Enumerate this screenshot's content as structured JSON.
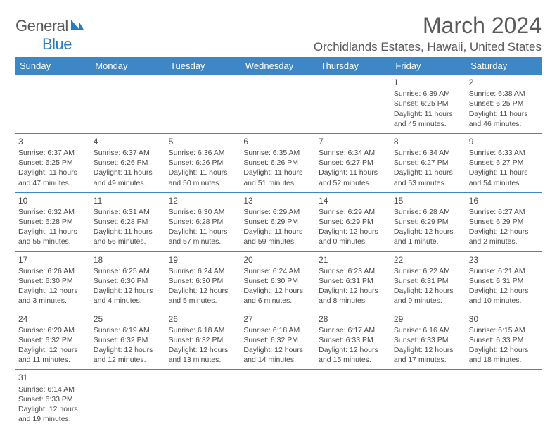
{
  "logo": {
    "text_general": "General",
    "text_blue": "Blue"
  },
  "title": "March 2024",
  "location": "Orchidlands Estates, Hawaii, United States",
  "header_bg": "#3d87c7",
  "divider_color": "#3d87c7",
  "day_headers": [
    "Sunday",
    "Monday",
    "Tuesday",
    "Wednesday",
    "Thursday",
    "Friday",
    "Saturday"
  ],
  "weeks": [
    [
      {
        "day": "",
        "sunrise": "",
        "sunset": "",
        "daylight": ""
      },
      {
        "day": "",
        "sunrise": "",
        "sunset": "",
        "daylight": ""
      },
      {
        "day": "",
        "sunrise": "",
        "sunset": "",
        "daylight": ""
      },
      {
        "day": "",
        "sunrise": "",
        "sunset": "",
        "daylight": ""
      },
      {
        "day": "",
        "sunrise": "",
        "sunset": "",
        "daylight": ""
      },
      {
        "day": "1",
        "sunrise": "Sunrise: 6:39 AM",
        "sunset": "Sunset: 6:25 PM",
        "daylight": "Daylight: 11 hours and 45 minutes."
      },
      {
        "day": "2",
        "sunrise": "Sunrise: 6:38 AM",
        "sunset": "Sunset: 6:25 PM",
        "daylight": "Daylight: 11 hours and 46 minutes."
      }
    ],
    [
      {
        "day": "3",
        "sunrise": "Sunrise: 6:37 AM",
        "sunset": "Sunset: 6:25 PM",
        "daylight": "Daylight: 11 hours and 47 minutes."
      },
      {
        "day": "4",
        "sunrise": "Sunrise: 6:37 AM",
        "sunset": "Sunset: 6:26 PM",
        "daylight": "Daylight: 11 hours and 49 minutes."
      },
      {
        "day": "5",
        "sunrise": "Sunrise: 6:36 AM",
        "sunset": "Sunset: 6:26 PM",
        "daylight": "Daylight: 11 hours and 50 minutes."
      },
      {
        "day": "6",
        "sunrise": "Sunrise: 6:35 AM",
        "sunset": "Sunset: 6:26 PM",
        "daylight": "Daylight: 11 hours and 51 minutes."
      },
      {
        "day": "7",
        "sunrise": "Sunrise: 6:34 AM",
        "sunset": "Sunset: 6:27 PM",
        "daylight": "Daylight: 11 hours and 52 minutes."
      },
      {
        "day": "8",
        "sunrise": "Sunrise: 6:34 AM",
        "sunset": "Sunset: 6:27 PM",
        "daylight": "Daylight: 11 hours and 53 minutes."
      },
      {
        "day": "9",
        "sunrise": "Sunrise: 6:33 AM",
        "sunset": "Sunset: 6:27 PM",
        "daylight": "Daylight: 11 hours and 54 minutes."
      }
    ],
    [
      {
        "day": "10",
        "sunrise": "Sunrise: 6:32 AM",
        "sunset": "Sunset: 6:28 PM",
        "daylight": "Daylight: 11 hours and 55 minutes."
      },
      {
        "day": "11",
        "sunrise": "Sunrise: 6:31 AM",
        "sunset": "Sunset: 6:28 PM",
        "daylight": "Daylight: 11 hours and 56 minutes."
      },
      {
        "day": "12",
        "sunrise": "Sunrise: 6:30 AM",
        "sunset": "Sunset: 6:28 PM",
        "daylight": "Daylight: 11 hours and 57 minutes."
      },
      {
        "day": "13",
        "sunrise": "Sunrise: 6:29 AM",
        "sunset": "Sunset: 6:29 PM",
        "daylight": "Daylight: 11 hours and 59 minutes."
      },
      {
        "day": "14",
        "sunrise": "Sunrise: 6:29 AM",
        "sunset": "Sunset: 6:29 PM",
        "daylight": "Daylight: 12 hours and 0 minutes."
      },
      {
        "day": "15",
        "sunrise": "Sunrise: 6:28 AM",
        "sunset": "Sunset: 6:29 PM",
        "daylight": "Daylight: 12 hours and 1 minute."
      },
      {
        "day": "16",
        "sunrise": "Sunrise: 6:27 AM",
        "sunset": "Sunset: 6:29 PM",
        "daylight": "Daylight: 12 hours and 2 minutes."
      }
    ],
    [
      {
        "day": "17",
        "sunrise": "Sunrise: 6:26 AM",
        "sunset": "Sunset: 6:30 PM",
        "daylight": "Daylight: 12 hours and 3 minutes."
      },
      {
        "day": "18",
        "sunrise": "Sunrise: 6:25 AM",
        "sunset": "Sunset: 6:30 PM",
        "daylight": "Daylight: 12 hours and 4 minutes."
      },
      {
        "day": "19",
        "sunrise": "Sunrise: 6:24 AM",
        "sunset": "Sunset: 6:30 PM",
        "daylight": "Daylight: 12 hours and 5 minutes."
      },
      {
        "day": "20",
        "sunrise": "Sunrise: 6:24 AM",
        "sunset": "Sunset: 6:30 PM",
        "daylight": "Daylight: 12 hours and 6 minutes."
      },
      {
        "day": "21",
        "sunrise": "Sunrise: 6:23 AM",
        "sunset": "Sunset: 6:31 PM",
        "daylight": "Daylight: 12 hours and 8 minutes."
      },
      {
        "day": "22",
        "sunrise": "Sunrise: 6:22 AM",
        "sunset": "Sunset: 6:31 PM",
        "daylight": "Daylight: 12 hours and 9 minutes."
      },
      {
        "day": "23",
        "sunrise": "Sunrise: 6:21 AM",
        "sunset": "Sunset: 6:31 PM",
        "daylight": "Daylight: 12 hours and 10 minutes."
      }
    ],
    [
      {
        "day": "24",
        "sunrise": "Sunrise: 6:20 AM",
        "sunset": "Sunset: 6:32 PM",
        "daylight": "Daylight: 12 hours and 11 minutes."
      },
      {
        "day": "25",
        "sunrise": "Sunrise: 6:19 AM",
        "sunset": "Sunset: 6:32 PM",
        "daylight": "Daylight: 12 hours and 12 minutes."
      },
      {
        "day": "26",
        "sunrise": "Sunrise: 6:18 AM",
        "sunset": "Sunset: 6:32 PM",
        "daylight": "Daylight: 12 hours and 13 minutes."
      },
      {
        "day": "27",
        "sunrise": "Sunrise: 6:18 AM",
        "sunset": "Sunset: 6:32 PM",
        "daylight": "Daylight: 12 hours and 14 minutes."
      },
      {
        "day": "28",
        "sunrise": "Sunrise: 6:17 AM",
        "sunset": "Sunset: 6:33 PM",
        "daylight": "Daylight: 12 hours and 15 minutes."
      },
      {
        "day": "29",
        "sunrise": "Sunrise: 6:16 AM",
        "sunset": "Sunset: 6:33 PM",
        "daylight": "Daylight: 12 hours and 17 minutes."
      },
      {
        "day": "30",
        "sunrise": "Sunrise: 6:15 AM",
        "sunset": "Sunset: 6:33 PM",
        "daylight": "Daylight: 12 hours and 18 minutes."
      }
    ],
    [
      {
        "day": "31",
        "sunrise": "Sunrise: 6:14 AM",
        "sunset": "Sunset: 6:33 PM",
        "daylight": "Daylight: 12 hours and 19 minutes."
      },
      {
        "day": "",
        "sunrise": "",
        "sunset": "",
        "daylight": ""
      },
      {
        "day": "",
        "sunrise": "",
        "sunset": "",
        "daylight": ""
      },
      {
        "day": "",
        "sunrise": "",
        "sunset": "",
        "daylight": ""
      },
      {
        "day": "",
        "sunrise": "",
        "sunset": "",
        "daylight": ""
      },
      {
        "day": "",
        "sunrise": "",
        "sunset": "",
        "daylight": ""
      },
      {
        "day": "",
        "sunrise": "",
        "sunset": "",
        "daylight": ""
      }
    ]
  ]
}
